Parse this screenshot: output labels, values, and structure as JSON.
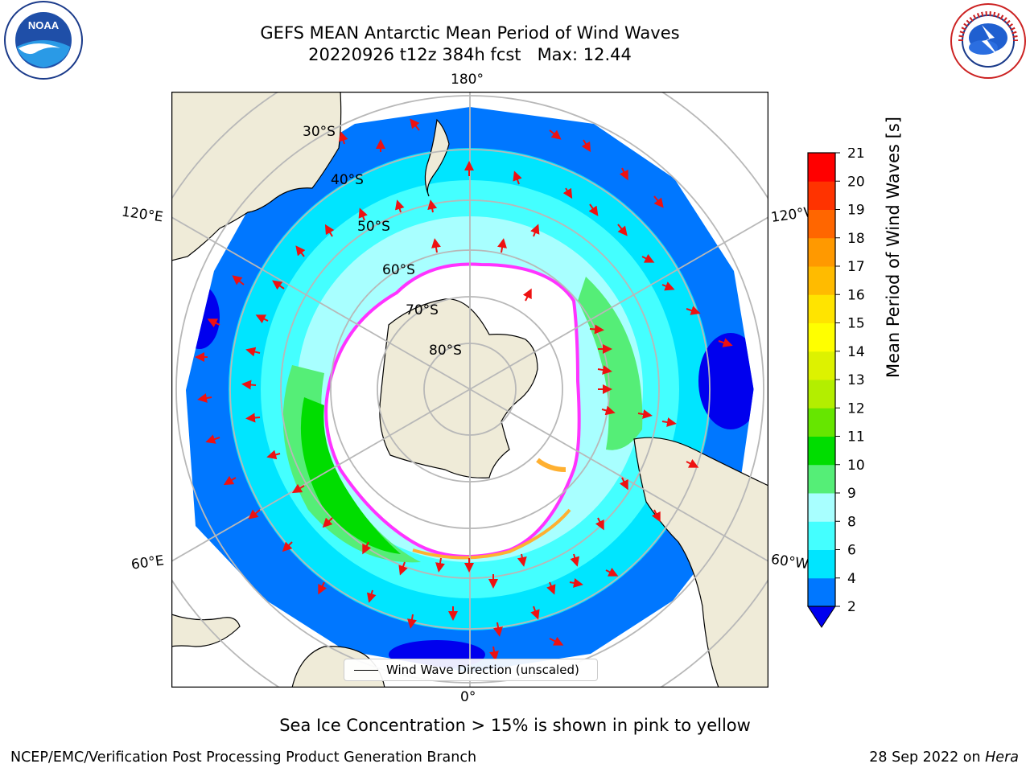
{
  "title": {
    "line1": "GEFS MEAN Antarctic Mean Period of Wind Waves",
    "line2": "20220926 t12z 384h fcst   Max: 12.44"
  },
  "map": {
    "projection": "south-polar-stereographic",
    "longitude_labels": {
      "top": "180°",
      "bottom": "0°",
      "upper_left": "120°E",
      "upper_right": "120°W",
      "lower_left": "60°E",
      "lower_right": "60°W"
    },
    "latitude_labels": [
      "30°S",
      "40°S",
      "50°S",
      "60°S",
      "70°S",
      "80°S"
    ],
    "legend": "Wind Wave Direction (unscaled)",
    "colors": {
      "land": "#efebd8",
      "ice_edge": "#ff33ff",
      "ice_interior": "#ffb030",
      "arrow": "#ee1111",
      "grid": "#b8b8b8"
    }
  },
  "colorbar": {
    "label": "Mean Period of Wind Waves [s]",
    "ticks": [
      "2",
      "4",
      "6",
      "8",
      "9",
      "10",
      "11",
      "12",
      "13",
      "14",
      "15",
      "16",
      "17",
      "18",
      "19",
      "20",
      "21"
    ],
    "colors": [
      "#0077ff",
      "#00e5ff",
      "#44ffff",
      "#a8ffff",
      "#55ee77",
      "#00dd00",
      "#66e600",
      "#b3ee00",
      "#ddf200",
      "#ffff00",
      "#ffe400",
      "#ffbb00",
      "#ff9900",
      "#ff6600",
      "#ff3300",
      "#ff0000"
    ],
    "extend_color": "#0000ee"
  },
  "note": "Sea Ice Concentration > 15% is shown in pink to yellow",
  "footer": {
    "left": "NCEP/EMC/Verification Post Processing Product Generation Branch",
    "right_prefix": "28 Sep 2022 on ",
    "right_machine": "Hera"
  },
  "logos": {
    "left": "NOAA",
    "right": "NATIONAL WEATHER SERVICE"
  }
}
